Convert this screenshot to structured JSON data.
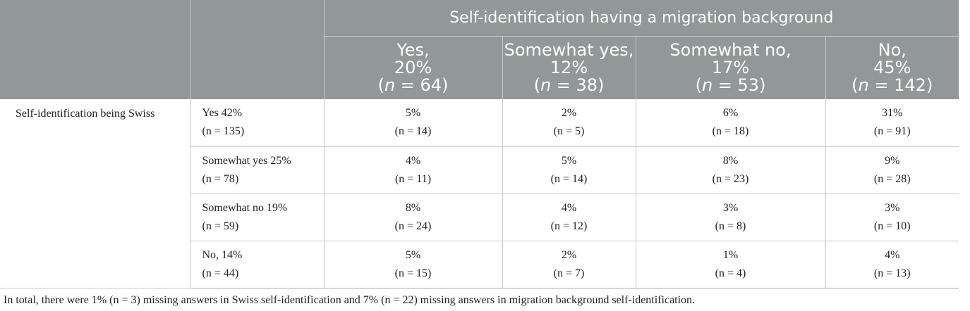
{
  "group_header": "Self-identification having a migration background",
  "column_headers": [
    {
      "line1": "Yes,",
      "line2": "20%",
      "n_prefix": "(",
      "n_symbol": "n",
      "n_value": " = 64)"
    },
    {
      "line1": "Somewhat yes,",
      "line2": "12%",
      "n_prefix": "(",
      "n_symbol": "n",
      "n_value": " = 38)"
    },
    {
      "line1": "Somewhat no,",
      "line2": "17%",
      "n_prefix": "(",
      "n_symbol": "n",
      "n_value": " = 53)"
    },
    {
      "line1": "No,",
      "line2": "45%",
      "n_prefix": "(",
      "n_symbol": "n",
      "n_value": " = 142)"
    }
  ],
  "row_group_label": "Self-identification being Swiss",
  "rows": [
    {
      "label_line1": "Yes 42%",
      "label_line2": "(n = 135)",
      "cells": [
        {
          "pct": "5%",
          "n": "(n = 14)"
        },
        {
          "pct": "2%",
          "n": "(n = 5)"
        },
        {
          "pct": "6%",
          "n": "(n = 18)"
        },
        {
          "pct": "31%",
          "n": "(n = 91)"
        }
      ]
    },
    {
      "label_line1": "Somewhat yes 25%",
      "label_line2": "(n = 78)",
      "cells": [
        {
          "pct": "4%",
          "n": "(n = 11)"
        },
        {
          "pct": "5%",
          "n": "(n = 14)"
        },
        {
          "pct": "8%",
          "n": "(n = 23)"
        },
        {
          "pct": "9%",
          "n": "(n = 28)"
        }
      ]
    },
    {
      "label_line1": "Somewhat no 19%",
      "label_line2": "(n = 59)",
      "cells": [
        {
          "pct": "8%",
          "n": "(n = 24)"
        },
        {
          "pct": "4%",
          "n": "(n = 12)"
        },
        {
          "pct": "3%",
          "n": "(n = 8)"
        },
        {
          "pct": "3%",
          "n": "(n = 10)"
        }
      ]
    },
    {
      "label_line1": "No, 14%",
      "label_line2": "(n = 44)",
      "cells": [
        {
          "pct": "5%",
          "n": "(n = 15)"
        },
        {
          "pct": "2%",
          "n": "(n = 7)"
        },
        {
          "pct": "1%",
          "n": "(n = 4)"
        },
        {
          "pct": "4%",
          "n": "(n = 13)"
        }
      ]
    }
  ],
  "footnote": "In total, there were 1% (n = 3) missing answers in Swiss self-identification and 7% (n = 22) missing answers in migration background self-identification.",
  "colors": {
    "header_bg": "#929897",
    "header_text": "#ffffff",
    "body_text": "#222222",
    "rule": "#c9c9c9"
  }
}
